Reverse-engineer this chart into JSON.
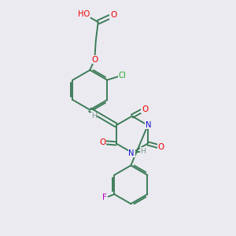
{
  "bg_color": "#eaeaf0",
  "bond_color": "#3a7a55",
  "atom_colors": {
    "O": "#ee0000",
    "N": "#1111cc",
    "Cl": "#22aa22",
    "F": "#bb00bb",
    "H": "#7a9a8a",
    "C": "#3a7a55"
  },
  "figsize": [
    3.0,
    3.0
  ],
  "dpi": 100
}
